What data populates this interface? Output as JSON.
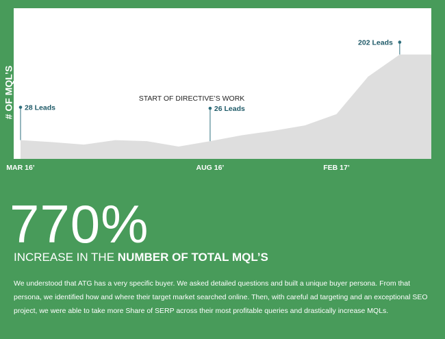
{
  "chart_data": {
    "type": "area",
    "y_label": "# OF MQL’S",
    "annotation": "START OF DIRECTIVE’S WORK",
    "categories": [
      "MAR 16’",
      null,
      null,
      null,
      null,
      null,
      "AUG 16’",
      null,
      null,
      null,
      "FEB 17’",
      null,
      null,
      null
    ],
    "values": [
      28,
      24,
      19,
      28,
      26,
      15,
      26,
      38,
      47,
      58,
      81,
      157,
      202,
      202
    ],
    "value_labels": [
      "28 Leads",
      null,
      null,
      null,
      null,
      null,
      "26 Leads",
      null,
      null,
      null,
      null,
      null,
      "202 Leads",
      null
    ],
    "color": "#dedede",
    "ylim": [
      -10,
      296
    ]
  },
  "page": {
    "stat": "770%",
    "stat_caption_lead": "INCREASE IN THE",
    "stat_caption_emphasis": "NUMBER OF TOTAL MQL’S",
    "body": "We understood that ATG has a very specific buyer. We asked detailed questions and built a unique buyer persona. From that persona, we identified how and where their target market searched online. Then, with careful ad targeting and an exceptional SEO project, we were able to take more Share of SERP across their most profitable queries and drastically increase MQLs."
  }
}
